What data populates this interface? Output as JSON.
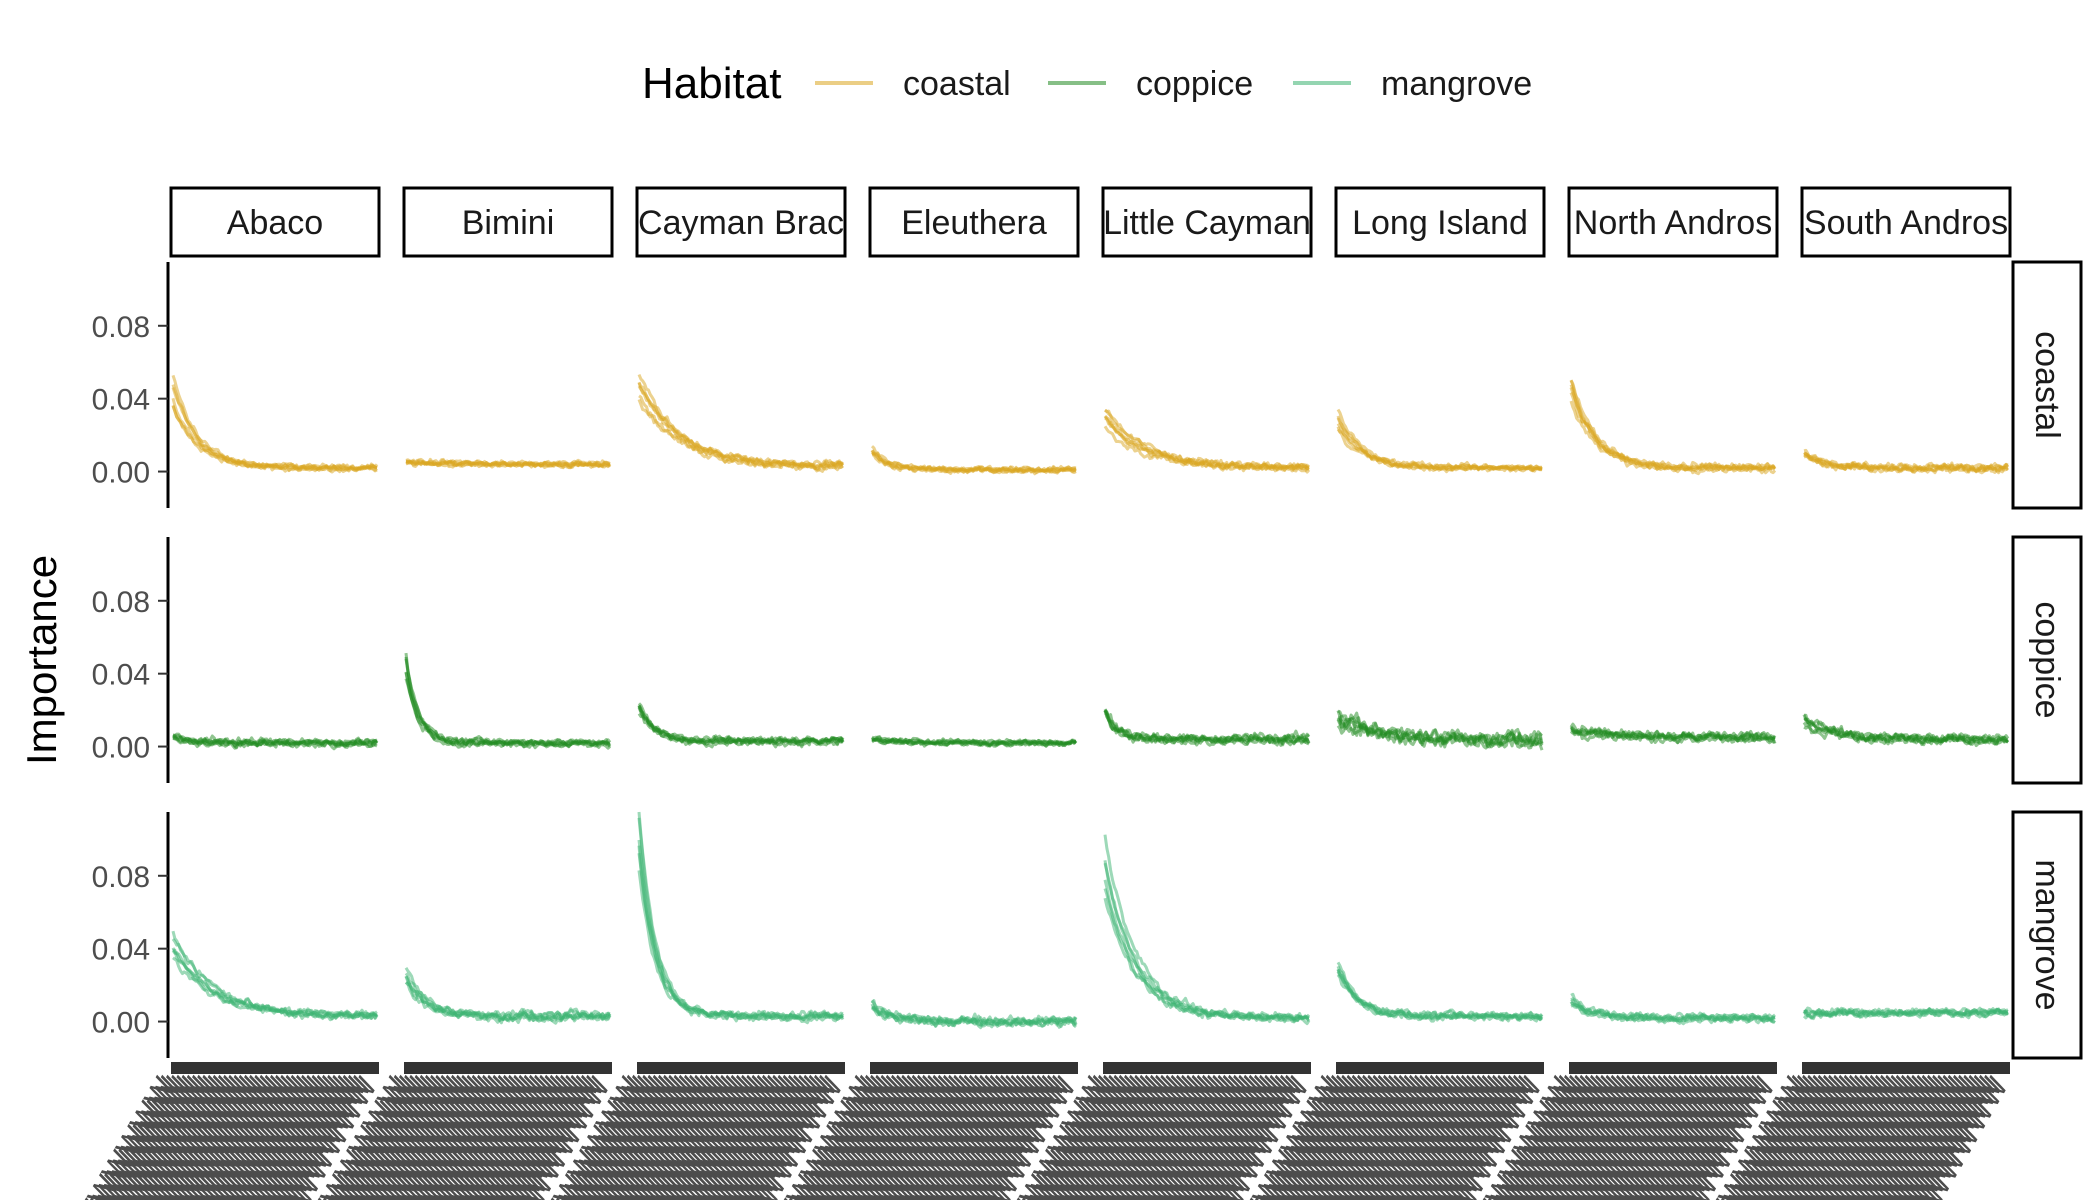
{
  "chart_data": {
    "type": "line",
    "ylabel": "Importance",
    "xlabel": "",
    "legend": {
      "title": "Habitat",
      "position": "top",
      "entries": [
        {
          "name": "coastal",
          "color": "#DAA520"
        },
        {
          "name": "coppice",
          "color": "#228B22"
        },
        {
          "name": "mangrove",
          "color": "#3CB371"
        }
      ]
    },
    "facet_columns": [
      "Abaco",
      "Bimini",
      "Cayman Brac",
      "Eleuthera",
      "Little Cayman",
      "Long Island",
      "North Andros",
      "South Andros"
    ],
    "facet_rows": [
      "coastal",
      "coppice",
      "mangrove"
    ],
    "y_ticks": [
      0.0,
      0.04,
      0.08
    ],
    "y_tick_labels": [
      "0.00",
      "0.04",
      "0.08"
    ],
    "ylim": [
      -0.02,
      0.115
    ],
    "grid": false,
    "x_tick_labels_overplotted": true,
    "line_alpha": 0.5,
    "panels": {
      "coastal": {
        "Abaco": {
          "start": 0.045,
          "decay": 0.12,
          "end": 0.002,
          "noise": 0.003
        },
        "Bimini": {
          "start": 0.005,
          "decay": 0.3,
          "end": 0.004,
          "noise": 0.003
        },
        "Cayman Brac": {
          "start": 0.045,
          "decay": 0.2,
          "end": 0.003,
          "noise": 0.004
        },
        "Eleuthera": {
          "start": 0.012,
          "decay": 0.08,
          "end": 0.001,
          "noise": 0.003
        },
        "Little Cayman": {
          "start": 0.03,
          "decay": 0.2,
          "end": 0.002,
          "noise": 0.004
        },
        "Long Island": {
          "start": 0.03,
          "decay": 0.12,
          "end": 0.002,
          "noise": 0.003
        },
        "North Andros": {
          "start": 0.045,
          "decay": 0.12,
          "end": 0.002,
          "noise": 0.004
        },
        "South Andros": {
          "start": 0.01,
          "decay": 0.1,
          "end": 0.002,
          "noise": 0.004
        }
      },
      "coppice": {
        "Abaco": {
          "start": 0.005,
          "decay": 0.1,
          "end": 0.002,
          "noise": 0.004
        },
        "Bimini": {
          "start": 0.045,
          "decay": 0.06,
          "end": 0.002,
          "noise": 0.004
        },
        "Cayman Brac": {
          "start": 0.025,
          "decay": 0.08,
          "end": 0.003,
          "noise": 0.004
        },
        "Eleuthera": {
          "start": 0.004,
          "decay": 0.2,
          "end": 0.002,
          "noise": 0.003
        },
        "Little Cayman": {
          "start": 0.02,
          "decay": 0.06,
          "end": 0.004,
          "noise": 0.005
        },
        "Long Island": {
          "start": 0.015,
          "decay": 0.2,
          "end": 0.004,
          "noise": 0.008
        },
        "North Andros": {
          "start": 0.01,
          "decay": 0.2,
          "end": 0.005,
          "noise": 0.005
        },
        "South Andros": {
          "start": 0.015,
          "decay": 0.15,
          "end": 0.004,
          "noise": 0.005
        }
      },
      "mangrove": {
        "Abaco": {
          "start": 0.045,
          "decay": 0.2,
          "end": 0.003,
          "noise": 0.004
        },
        "Bimini": {
          "start": 0.025,
          "decay": 0.1,
          "end": 0.003,
          "noise": 0.005
        },
        "Cayman Brac": {
          "start": 0.1,
          "decay": 0.08,
          "end": 0.003,
          "noise": 0.004
        },
        "Eleuthera": {
          "start": 0.01,
          "decay": 0.1,
          "end": 0.0,
          "noise": 0.005
        },
        "Little Cayman": {
          "start": 0.085,
          "decay": 0.15,
          "end": 0.002,
          "noise": 0.004
        },
        "Long Island": {
          "start": 0.03,
          "decay": 0.1,
          "end": 0.003,
          "noise": 0.004
        },
        "North Andros": {
          "start": 0.012,
          "decay": 0.1,
          "end": 0.002,
          "noise": 0.004
        },
        "South Andros": {
          "start": 0.005,
          "decay": 0.3,
          "end": 0.005,
          "noise": 0.004
        }
      }
    }
  }
}
